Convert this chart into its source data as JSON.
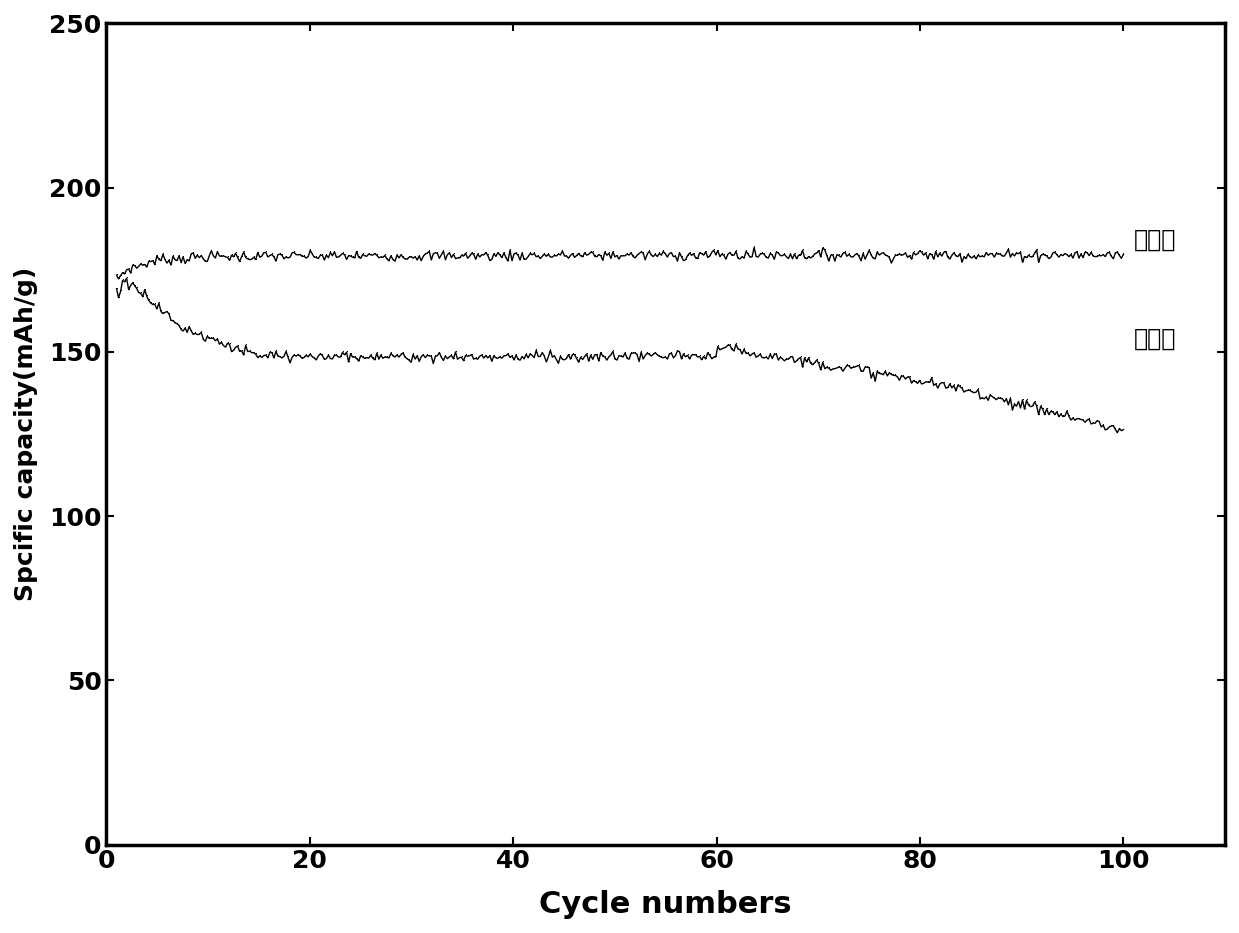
{
  "xlabel": "Cycle numbers",
  "ylabel": "Spcific capacity(mAh/g)",
  "xlim": [
    0,
    110
  ],
  "ylim": [
    0,
    250
  ],
  "xticks": [
    0,
    20,
    40,
    60,
    80,
    100
  ],
  "yticks": [
    0,
    50,
    100,
    150,
    200,
    250
  ],
  "line_color": "#000000",
  "label1": "实验样",
  "label2": "对照样",
  "background_color": "#ffffff",
  "xlabel_fontsize": 22,
  "ylabel_fontsize": 18,
  "tick_fontsize": 18,
  "annotation_fontsize": 17
}
